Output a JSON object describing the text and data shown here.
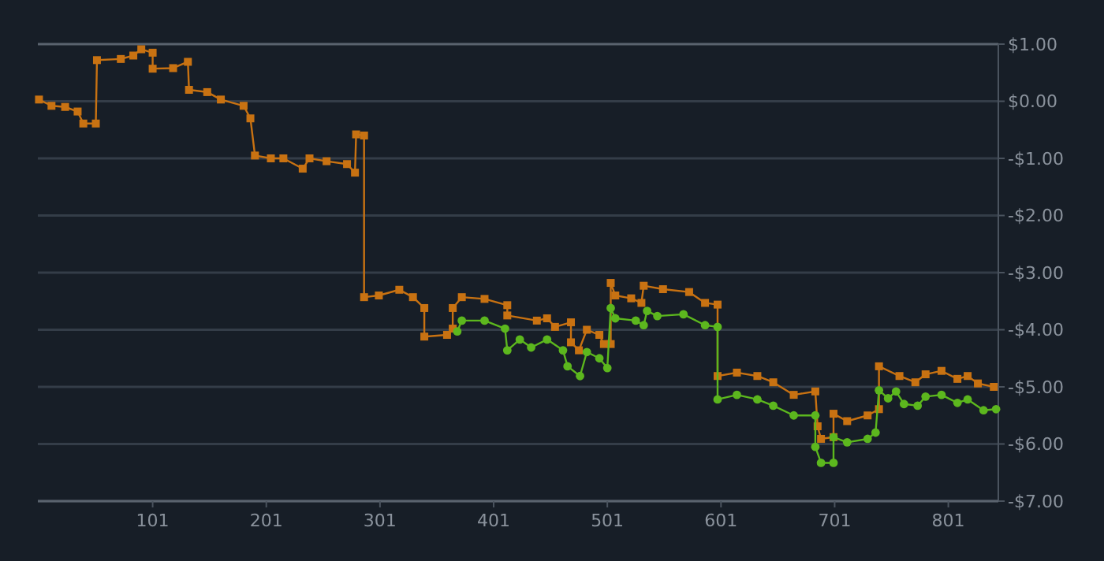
{
  "chart_data": {
    "type": "line",
    "xlim": [
      0,
      845
    ],
    "ylim": [
      -7,
      1
    ],
    "xticks": [
      101,
      201,
      301,
      401,
      501,
      601,
      701,
      801
    ],
    "yticks": [
      {
        "value": 1,
        "label": "$1.00"
      },
      {
        "value": 0,
        "label": "$0.00"
      },
      {
        "value": -1,
        "label": "-$1.00"
      },
      {
        "value": -2,
        "label": "-$2.00"
      },
      {
        "value": -3,
        "label": "-$3.00"
      },
      {
        "value": -4,
        "label": "-$4.00"
      },
      {
        "value": -5,
        "label": "-$5.00"
      },
      {
        "value": -6,
        "label": "-$6.00"
      },
      {
        "value": -7,
        "label": "-$7.00"
      }
    ],
    "grid": "y",
    "line_style": "solid",
    "series": [
      {
        "color": "#c87212",
        "marker": "square",
        "x": [
          1,
          12,
          24,
          35,
          40,
          51,
          52,
          73,
          84,
          91,
          101,
          101,
          119,
          132,
          133,
          149,
          161,
          181,
          187,
          191,
          205,
          216,
          233,
          239,
          254,
          272,
          279,
          280,
          287,
          287,
          300,
          318,
          330,
          340,
          340,
          360,
          365,
          365,
          373,
          393,
          413,
          413,
          439,
          448,
          455,
          469,
          469,
          476,
          483,
          494,
          498,
          504,
          504,
          508,
          522,
          531,
          533,
          550,
          573,
          587,
          598,
          598,
          615,
          633,
          647,
          665,
          684,
          686,
          689,
          700,
          700,
          712,
          730,
          740,
          740,
          758,
          772,
          781,
          795,
          809,
          818,
          827,
          841
        ],
        "values": [
          0.03,
          -0.08,
          -0.1,
          -0.18,
          -0.39,
          -0.39,
          0.72,
          0.74,
          0.8,
          0.91,
          0.85,
          0.57,
          0.58,
          0.69,
          0.2,
          0.16,
          0.03,
          -0.08,
          -0.3,
          -0.95,
          -1.0,
          -1.0,
          -1.18,
          -1.0,
          -1.05,
          -1.1,
          -1.25,
          -0.58,
          -0.6,
          -3.43,
          -3.4,
          -3.3,
          -3.43,
          -3.62,
          -4.12,
          -4.09,
          -3.98,
          -3.62,
          -3.43,
          -3.46,
          -3.57,
          -3.75,
          -3.84,
          -3.8,
          -3.95,
          -3.87,
          -4.22,
          -4.36,
          -4.0,
          -4.09,
          -4.25,
          -4.25,
          -3.18,
          -3.4,
          -3.45,
          -3.53,
          -3.23,
          -3.29,
          -3.34,
          -3.53,
          -3.56,
          -4.81,
          -4.75,
          -4.81,
          -4.92,
          -5.14,
          -5.08,
          -5.69,
          -5.91,
          -5.88,
          -5.47,
          -5.6,
          -5.5,
          -5.39,
          -4.64,
          -4.81,
          -4.92,
          -4.78,
          -4.72,
          -4.86,
          -4.81,
          -4.94,
          -5.0
        ]
      },
      {
        "color": "#5cb71e",
        "marker": "circle",
        "x": [
          369,
          373,
          393,
          411,
          413,
          424,
          434,
          448,
          462,
          466,
          477,
          483,
          494,
          501,
          504,
          508,
          526,
          533,
          536,
          545,
          568,
          587,
          598,
          598,
          615,
          633,
          647,
          665,
          684,
          684,
          689,
          700,
          700,
          712,
          730,
          737,
          740,
          748,
          755,
          762,
          774,
          781,
          795,
          809,
          818,
          832,
          843
        ],
        "values": [
          -4.03,
          -3.84,
          -3.84,
          -3.98,
          -4.36,
          -4.17,
          -4.31,
          -4.17,
          -4.36,
          -4.64,
          -4.81,
          -4.39,
          -4.5,
          -4.67,
          -3.62,
          -3.8,
          -3.84,
          -3.92,
          -3.67,
          -3.76,
          -3.73,
          -3.92,
          -3.95,
          -5.22,
          -5.14,
          -5.22,
          -5.33,
          -5.5,
          -5.5,
          -6.05,
          -6.33,
          -6.33,
          -5.88,
          -5.97,
          -5.91,
          -5.8,
          -5.06,
          -5.2,
          -5.08,
          -5.3,
          -5.33,
          -5.17,
          -5.14,
          -5.28,
          -5.22,
          -5.41,
          -5.39
        ]
      }
    ]
  }
}
